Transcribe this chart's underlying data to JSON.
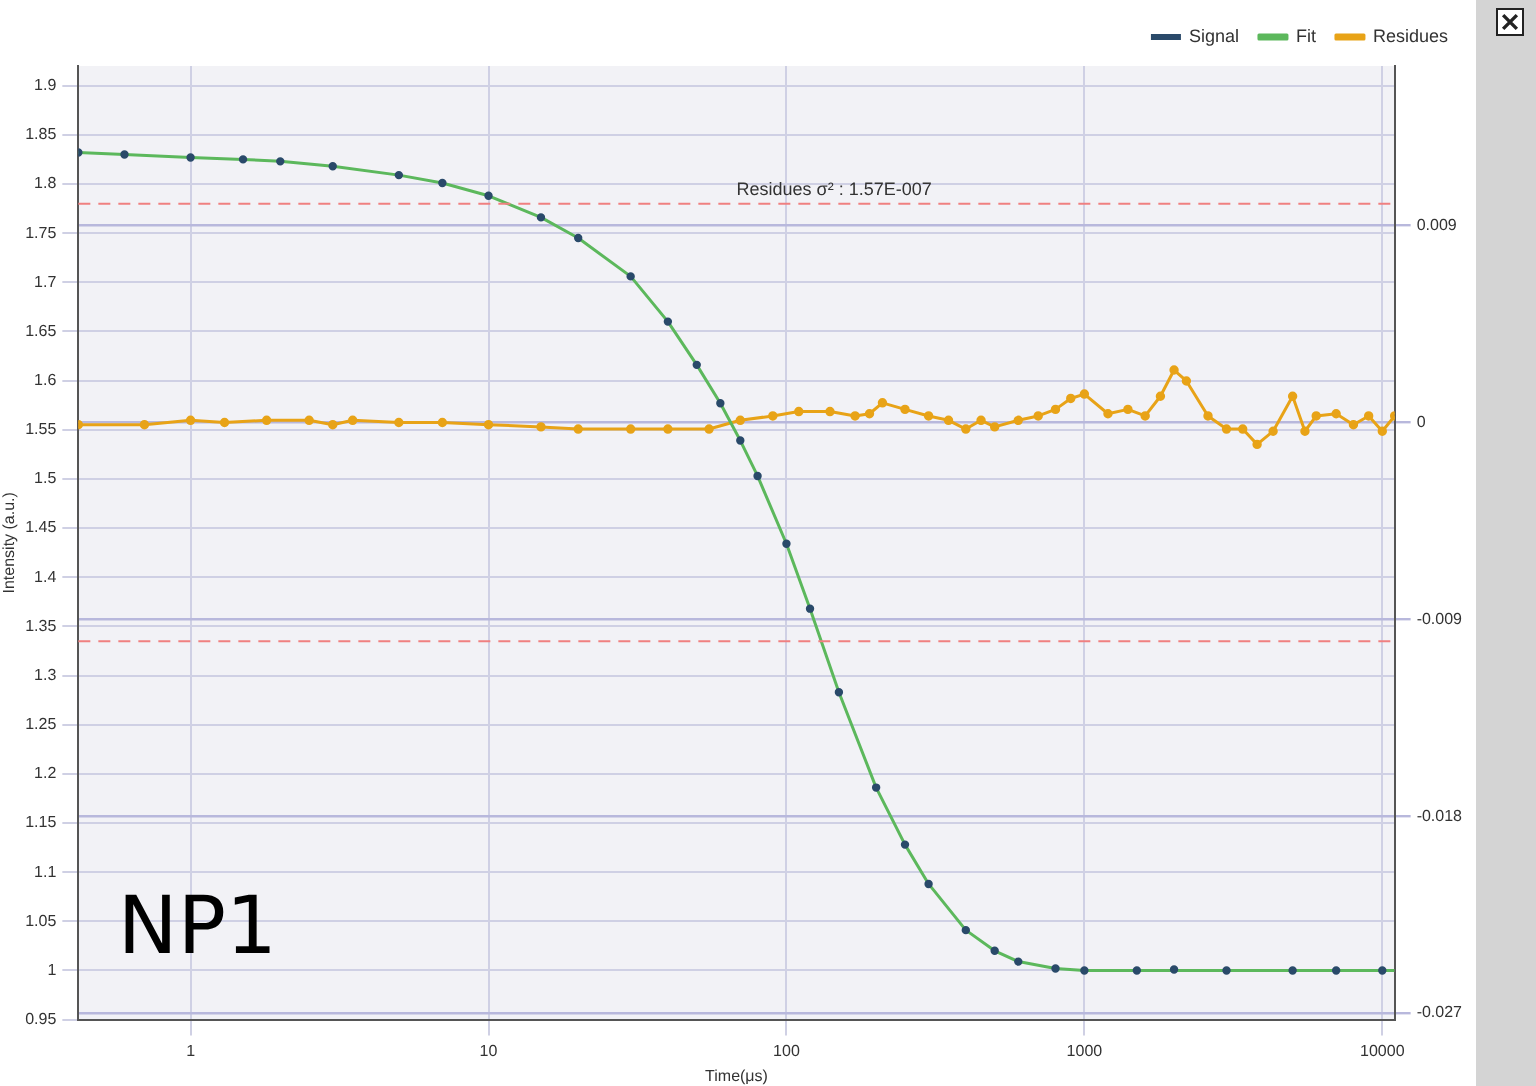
{
  "chart_data": {
    "type": "line",
    "xlabel": "Time(μs)",
    "ylabel": "Intensity (a.u.)",
    "log": "x",
    "grid": true,
    "legend": "top right",
    "xlim": [
      0.42,
      11000
    ],
    "xticks": [
      1,
      10,
      100,
      1000,
      10000
    ],
    "ylim": [
      0.95,
      1.92
    ],
    "yticks": [
      0.95,
      1,
      1.05,
      1.1,
      1.15,
      1.2,
      1.25,
      1.3,
      1.35,
      1.4,
      1.45,
      1.5,
      1.55,
      1.6,
      1.65,
      1.7,
      1.75,
      1.8,
      1.85,
      1.9
    ],
    "y2lim": [
      -0.0273,
      0.0163
    ],
    "y2ticks": [
      -0.027,
      -0.018,
      -0.009,
      0,
      0.009
    ],
    "ref_lines": [
      {
        "axis": "y2",
        "value": 0.01,
        "color": "#f08080",
        "line_style": "dashed"
      },
      {
        "axis": "y2",
        "value": -0.01,
        "color": "#f08080",
        "line_style": "dashed"
      }
    ],
    "annotations": [
      "Residues σ² : 1.57E-007",
      "NP1"
    ],
    "series": [
      {
        "name": "Signal",
        "type": "scatter",
        "marker": "circle",
        "color": "#2a4a6a",
        "x": [
          0.42,
          0.6,
          1,
          1.5,
          2,
          3,
          5,
          7,
          10,
          15,
          20,
          30,
          40,
          50,
          60,
          70,
          80,
          100,
          120,
          150,
          200,
          250,
          300,
          400,
          500,
          600,
          800,
          1000,
          1500,
          2000,
          3000,
          5000,
          7000,
          10000
        ],
        "values": [
          1.832,
          1.83,
          1.827,
          1.825,
          1.823,
          1.818,
          1.809,
          1.801,
          1.788,
          1.766,
          1.745,
          1.706,
          1.66,
          1.616,
          1.577,
          1.539,
          1.503,
          1.434,
          1.368,
          1.283,
          1.186,
          1.128,
          1.088,
          1.041,
          1.02,
          1.009,
          1.002,
          1.0,
          1.0,
          1.001,
          1.0,
          1.0,
          1.0,
          1.0
        ]
      },
      {
        "name": "Fit",
        "type": "line",
        "marker": "none",
        "color": "#5cb85c",
        "x": [
          0.42,
          0.6,
          1,
          1.5,
          2,
          3,
          5,
          7,
          10,
          15,
          20,
          30,
          40,
          50,
          60,
          70,
          80,
          100,
          120,
          150,
          200,
          250,
          300,
          400,
          500,
          600,
          800,
          1000,
          1500,
          2000,
          3000,
          5000,
          7000,
          11000
        ],
        "values": [
          1.832,
          1.83,
          1.827,
          1.825,
          1.823,
          1.818,
          1.809,
          1.801,
          1.788,
          1.766,
          1.745,
          1.706,
          1.66,
          1.616,
          1.577,
          1.539,
          1.503,
          1.434,
          1.368,
          1.283,
          1.186,
          1.128,
          1.088,
          1.041,
          1.02,
          1.009,
          1.002,
          1.0,
          1.0,
          1.0,
          1.0,
          1.0,
          1.0,
          1.0
        ]
      },
      {
        "name": "Residues",
        "type": "line",
        "marker": "circle",
        "axis": "y2",
        "color": "#e8a317",
        "x": [
          0.42,
          0.7,
          1,
          1.3,
          1.8,
          2.5,
          3,
          3.5,
          5,
          7,
          10,
          15,
          20,
          30,
          40,
          55,
          70,
          90,
          110,
          140,
          170,
          190,
          210,
          250,
          300,
          350,
          400,
          450,
          500,
          600,
          700,
          800,
          900,
          1000,
          1200,
          1400,
          1600,
          1800,
          2000,
          2200,
          2600,
          3000,
          3400,
          3800,
          4300,
          5000,
          5500,
          6000,
          7000,
          8000,
          9000,
          10000,
          11000
        ],
        "values": [
          -0.0001,
          -0.0001,
          0.0001,
          0,
          0.0001,
          0.0001,
          -0.0001,
          0.0001,
          0,
          0,
          -0.0001,
          -0.0002,
          -0.0003,
          -0.0003,
          -0.0003,
          -0.0003,
          0.0001,
          0.0003,
          0.0005,
          0.0005,
          0.0003,
          0.0004,
          0.0009,
          0.0006,
          0.0003,
          0.0001,
          -0.0003,
          0.0001,
          -0.0002,
          0.0001,
          0.0003,
          0.0006,
          0.0011,
          0.0013,
          0.0004,
          0.0006,
          0.0003,
          0.0012,
          0.0024,
          0.0019,
          0.0003,
          -0.0003,
          -0.0003,
          -0.001,
          -0.0004,
          0.0012,
          -0.0004,
          0.0003,
          0.0004,
          -0.0001,
          0.0003,
          -0.0004,
          0.0003
        ]
      }
    ]
  }
}
